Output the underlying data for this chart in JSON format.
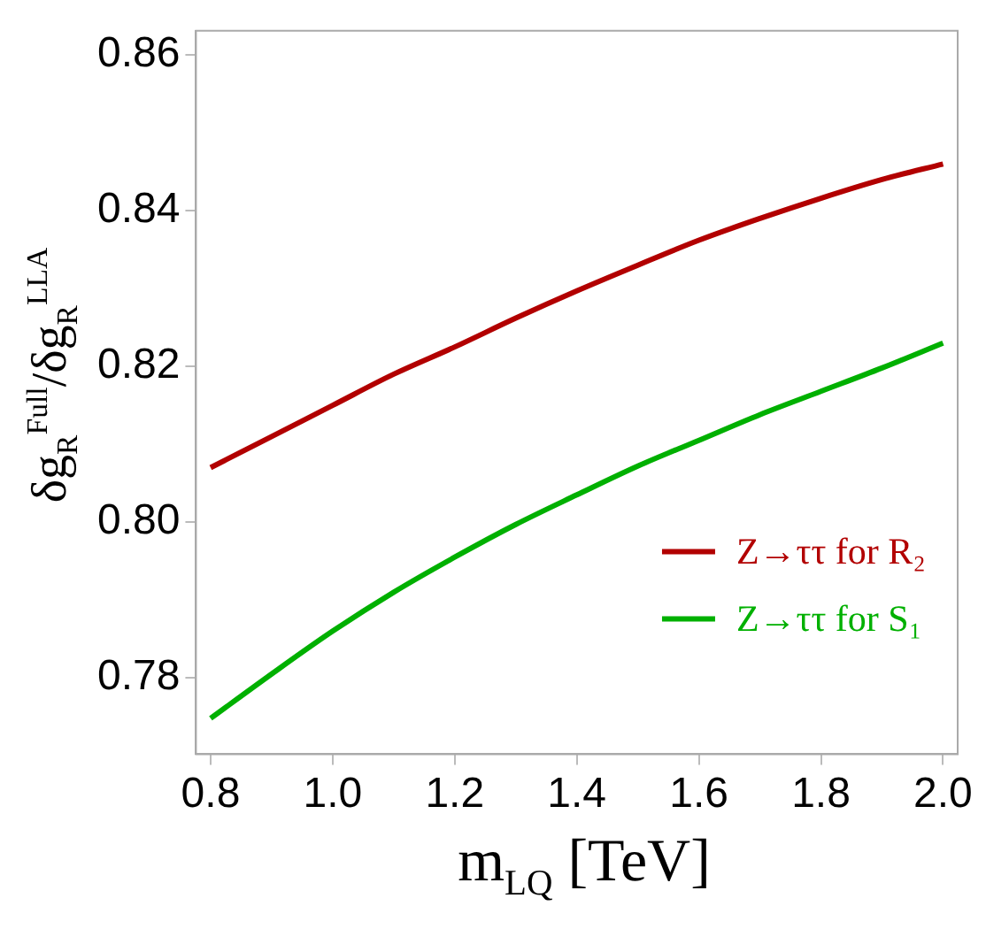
{
  "chart_data": {
    "type": "line",
    "xlabel": "m$_{LQ}$ [TeV]",
    "ylabel": "δg$_{R}$$^{Full}$/δg$_{R}$$^{LLA}$",
    "x": [
      0.8,
      0.9,
      1.0,
      1.1,
      1.2,
      1.3,
      1.4,
      1.5,
      1.6,
      1.7,
      1.8,
      1.9,
      2.0
    ],
    "series": [
      {
        "name": "Z→ττ for R₂",
        "color": "#b20000",
        "values": [
          0.807,
          0.811,
          0.815,
          0.819,
          0.8225,
          0.8262,
          0.8297,
          0.833,
          0.8362,
          0.839,
          0.8416,
          0.844,
          0.846
        ]
      },
      {
        "name": "Z→ττ for S₁",
        "color": "#00b000",
        "values": [
          0.7748,
          0.7805,
          0.786,
          0.791,
          0.7955,
          0.7997,
          0.8035,
          0.8072,
          0.8105,
          0.8138,
          0.8168,
          0.8198,
          0.823
        ]
      }
    ],
    "xlim": [
      0.776,
      2.024
    ],
    "ylim": [
      0.7702,
      0.8631
    ],
    "xticks": [
      {
        "value": 0.8,
        "label": "0.8"
      },
      {
        "value": 1.0,
        "label": "1.0"
      },
      {
        "value": 1.2,
        "label": "1.2"
      },
      {
        "value": 1.4,
        "label": "1.4"
      },
      {
        "value": 1.6,
        "label": "1.6"
      },
      {
        "value": 1.8,
        "label": "1.8"
      },
      {
        "value": 2.0,
        "label": "2.0"
      }
    ],
    "yticks": [
      {
        "value": 0.78,
        "label": "0.78"
      },
      {
        "value": 0.8,
        "label": "0.80"
      },
      {
        "value": 0.82,
        "label": "0.82"
      },
      {
        "value": 0.84,
        "label": "0.84"
      },
      {
        "value": 0.86,
        "label": "0.86"
      }
    ],
    "grid": false,
    "legend": "right",
    "marker": "none",
    "line_style": "solid"
  }
}
